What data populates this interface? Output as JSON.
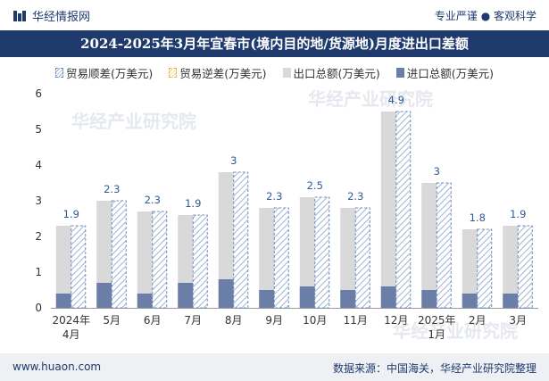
{
  "header": {
    "brand": "华经情报网",
    "right_text": "专业严谨 ● 客观科学"
  },
  "footer": {
    "website": "www.huaon.com",
    "source": "数据来源：中国海关，华经产业研究院整理"
  },
  "watermark": {
    "text1": "华经产业研究院",
    "text2": "www.huaon.com"
  },
  "colors": {
    "title_bg": "#1f3b6e",
    "export_bar": "#d9d9d9",
    "import_bar": "#6a7ea8",
    "surplus_hatch": "#9fb3d3",
    "surplus_border": "#6f8fbf",
    "deficit_hatch": "#f0d27a",
    "label_blue": "#2e5a96"
  },
  "chart_data": {
    "type": "bar",
    "title": "2024-2025年3月年宜春市(境内目的地/货源地)月度进出口差额",
    "legend": [
      "贸易顺差(万美元)",
      "贸易逆差(万美元)",
      "出口总额(万美元)",
      "进口总额(万美元)"
    ],
    "categories": [
      "2024年4月",
      "5月",
      "6月",
      "7月",
      "8月",
      "9月",
      "10月",
      "11月",
      "12月",
      "2025年1月",
      "2月",
      "3月"
    ],
    "series": [
      {
        "name": "出口总额(万美元)",
        "values": [
          2.3,
          3.0,
          2.7,
          2.6,
          3.8,
          2.8,
          3.1,
          2.8,
          5.5,
          3.5,
          2.2,
          2.3
        ]
      },
      {
        "name": "进口总额(万美元)",
        "values": [
          0.4,
          0.7,
          0.4,
          0.7,
          0.8,
          0.5,
          0.6,
          0.5,
          0.6,
          0.5,
          0.4,
          0.4
        ]
      },
      {
        "name": "贸易顺差(万美元)",
        "values": [
          1.9,
          2.3,
          2.3,
          1.9,
          3.0,
          2.3,
          2.5,
          2.3,
          4.9,
          3.0,
          1.8,
          1.9
        ]
      }
    ],
    "surplus_labels": [
      "1.9",
      "2.3",
      "2.3",
      "1.9",
      "3",
      "2.3",
      "2.5",
      "2.3",
      "4.9",
      "3",
      "1.8",
      "1.9"
    ],
    "yticks": [
      0,
      1,
      2,
      3,
      4,
      5,
      6
    ],
    "ylim": [
      0,
      6
    ]
  }
}
